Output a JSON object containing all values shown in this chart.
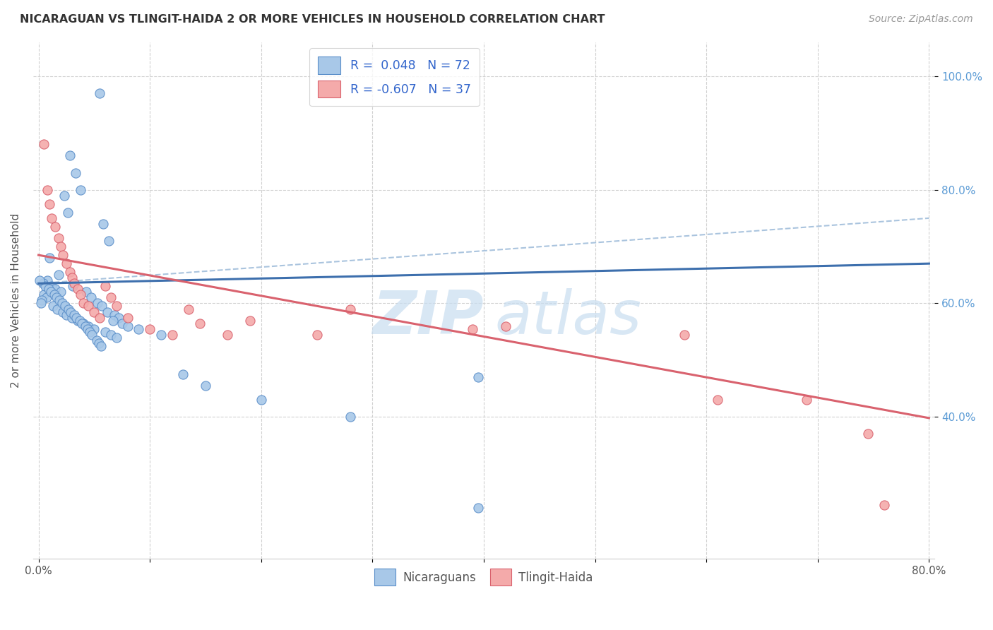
{
  "title": "NICARAGUAN VS TLINGIT-HAIDA 2 OR MORE VEHICLES IN HOUSEHOLD CORRELATION CHART",
  "source": "Source: ZipAtlas.com",
  "ylabel": "2 or more Vehicles in Household",
  "legend_R1": "R =  0.048",
  "legend_N1": "N = 72",
  "legend_R2": "R = -0.607",
  "legend_N2": "N = 37",
  "blue_fill": "#a8c8e8",
  "blue_edge": "#5b8fc9",
  "pink_fill": "#f4aaaa",
  "pink_edge": "#d9626e",
  "blue_line": "#3d6fad",
  "pink_line": "#d9626e",
  "dashed_line": "#aac4de",
  "watermark_color": "#c8ddf0",
  "xlim": [
    0.0,
    0.8
  ],
  "ylim": [
    0.15,
    1.06
  ],
  "blue_x": [
    0.055,
    0.028,
    0.033,
    0.038,
    0.023,
    0.026,
    0.058,
    0.063,
    0.01,
    0.018,
    0.008,
    0.012,
    0.015,
    0.02,
    0.005,
    0.007,
    0.003,
    0.002,
    0.013,
    0.017,
    0.022,
    0.025,
    0.03,
    0.035,
    0.04,
    0.045,
    0.05,
    0.06,
    0.065,
    0.07,
    0.004,
    0.006,
    0.009,
    0.011,
    0.014,
    0.016,
    0.019,
    0.021,
    0.024,
    0.027,
    0.029,
    0.032,
    0.034,
    0.037,
    0.039,
    0.042,
    0.044,
    0.046,
    0.048,
    0.052,
    0.054,
    0.056,
    0.001,
    0.031,
    0.043,
    0.047,
    0.053,
    0.057,
    0.062,
    0.068,
    0.072,
    0.067,
    0.075,
    0.08,
    0.09,
    0.11,
    0.13,
    0.15,
    0.2,
    0.28,
    0.395,
    0.395
  ],
  "blue_y": [
    0.97,
    0.86,
    0.83,
    0.8,
    0.79,
    0.76,
    0.74,
    0.71,
    0.68,
    0.65,
    0.64,
    0.63,
    0.625,
    0.62,
    0.615,
    0.61,
    0.605,
    0.6,
    0.595,
    0.59,
    0.585,
    0.58,
    0.575,
    0.57,
    0.565,
    0.56,
    0.555,
    0.55,
    0.545,
    0.54,
    0.635,
    0.63,
    0.625,
    0.62,
    0.615,
    0.61,
    0.605,
    0.6,
    0.595,
    0.59,
    0.585,
    0.58,
    0.575,
    0.57,
    0.565,
    0.56,
    0.555,
    0.55,
    0.545,
    0.535,
    0.53,
    0.525,
    0.64,
    0.63,
    0.62,
    0.61,
    0.6,
    0.595,
    0.585,
    0.58,
    0.575,
    0.57,
    0.565,
    0.56,
    0.555,
    0.545,
    0.475,
    0.455,
    0.43,
    0.4,
    0.47,
    0.24
  ],
  "pink_x": [
    0.005,
    0.008,
    0.01,
    0.012,
    0.015,
    0.018,
    0.02,
    0.022,
    0.025,
    0.028,
    0.03,
    0.032,
    0.035,
    0.038,
    0.04,
    0.045,
    0.05,
    0.055,
    0.06,
    0.065,
    0.07,
    0.08,
    0.1,
    0.12,
    0.135,
    0.145,
    0.17,
    0.19,
    0.25,
    0.28,
    0.39,
    0.42,
    0.58,
    0.61,
    0.69,
    0.745,
    0.76
  ],
  "pink_y": [
    0.88,
    0.8,
    0.775,
    0.75,
    0.735,
    0.715,
    0.7,
    0.685,
    0.67,
    0.655,
    0.645,
    0.635,
    0.625,
    0.615,
    0.6,
    0.595,
    0.585,
    0.575,
    0.63,
    0.61,
    0.595,
    0.575,
    0.555,
    0.545,
    0.59,
    0.565,
    0.545,
    0.57,
    0.545,
    0.59,
    0.555,
    0.56,
    0.545,
    0.43,
    0.43,
    0.37,
    0.245
  ],
  "blue_trend_x": [
    0.0,
    0.8
  ],
  "blue_trend_y": [
    0.635,
    0.67
  ],
  "pink_trend_x": [
    0.0,
    0.8
  ],
  "pink_trend_y": [
    0.685,
    0.398
  ],
  "dashed_trend_x": [
    0.0,
    0.8
  ],
  "dashed_trend_y": [
    0.635,
    0.75
  ]
}
